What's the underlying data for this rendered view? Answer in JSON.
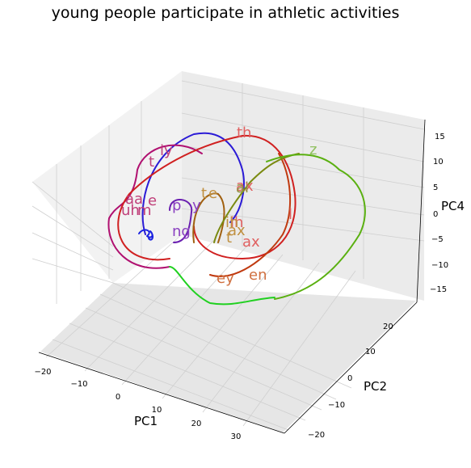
{
  "chart_data": {
    "type": "line3d",
    "title": "young people participate in athletic activities",
    "axes": {
      "x": {
        "label": "PC1",
        "ticks": [
          "−20",
          "−10",
          "0",
          "10",
          "20",
          "30"
        ]
      },
      "y": {
        "label": "PC2",
        "ticks": [
          "−20",
          "−10",
          "0",
          "10",
          "20"
        ]
      },
      "z": {
        "label": "PC4",
        "ticks": [
          "15",
          "10",
          "5",
          "0",
          "−5",
          "−10",
          "−15"
        ]
      }
    },
    "grid": true,
    "series": [
      {
        "color": "#2b1bd6",
        "label_color": "#3b2bd6",
        "labels": []
      },
      {
        "color": "#1a22e0",
        "label_color": "#1a22e0",
        "labels": []
      },
      {
        "color": "#6a1fb0",
        "label_color": "#8a3fc0",
        "labels": [
          "p",
          "y",
          "ng"
        ]
      },
      {
        "color": "#b01070",
        "label_color": "#c0407a",
        "labels": [
          "t",
          "iy",
          "aa",
          "e",
          "uh",
          "m"
        ]
      },
      {
        "color": "#d02020",
        "label_color": "#e06060",
        "labels": [
          "th",
          "l",
          "ax",
          "ax",
          "ih"
        ]
      },
      {
        "color": "#c03a10",
        "label_color": "#d07040",
        "labels": [
          "ey",
          "en"
        ]
      },
      {
        "color": "#a06010",
        "label_color": "#c09040",
        "labels": [
          "t",
          "e",
          "ih",
          "ax",
          "t"
        ]
      },
      {
        "color": "#7a8a10",
        "label_color": "#909040",
        "labels": [
          "ai"
        ]
      },
      {
        "color": "#5ab010",
        "label_color": "#90c060",
        "labels": [
          "z"
        ]
      },
      {
        "color": "#20d020",
        "label_color": "#60c060",
        "labels": []
      }
    ]
  }
}
